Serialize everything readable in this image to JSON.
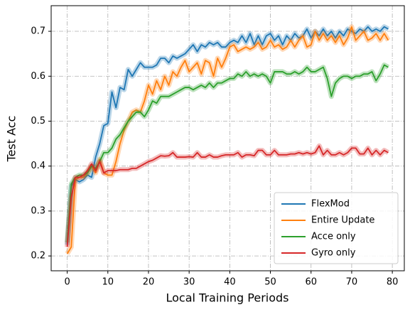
{
  "chart_data": {
    "type": "line",
    "xlabel": "Local Training Periods",
    "ylabel": "Test Acc",
    "x": [
      0,
      1,
      2,
      3,
      4,
      5,
      6,
      7,
      8,
      9,
      10,
      11,
      12,
      13,
      14,
      15,
      16,
      17,
      18,
      19,
      20,
      21,
      22,
      23,
      24,
      25,
      26,
      27,
      28,
      29,
      30,
      31,
      32,
      33,
      34,
      35,
      36,
      37,
      38,
      39,
      40,
      41,
      42,
      43,
      44,
      45,
      46,
      47,
      48,
      49,
      50,
      51,
      52,
      53,
      54,
      55,
      56,
      57,
      58,
      59,
      60,
      61,
      62,
      63,
      64,
      65,
      66,
      67,
      68,
      69,
      70,
      71,
      72,
      73,
      74,
      75,
      76,
      77,
      78,
      79
    ],
    "series": [
      {
        "name": "FlexMod",
        "color": "#1f77b4",
        "values": [
          0.225,
          0.355,
          0.37,
          0.365,
          0.37,
          0.38,
          0.375,
          0.42,
          0.45,
          0.49,
          0.495,
          0.565,
          0.53,
          0.575,
          0.57,
          0.615,
          0.6,
          0.615,
          0.63,
          0.62,
          0.62,
          0.62,
          0.625,
          0.64,
          0.64,
          0.63,
          0.645,
          0.64,
          0.645,
          0.65,
          0.66,
          0.67,
          0.655,
          0.67,
          0.665,
          0.675,
          0.67,
          0.675,
          0.665,
          0.665,
          0.675,
          0.68,
          0.675,
          0.69,
          0.675,
          0.695,
          0.67,
          0.69,
          0.67,
          0.69,
          0.695,
          0.68,
          0.69,
          0.67,
          0.69,
          0.68,
          0.695,
          0.685,
          0.69,
          0.705,
          0.685,
          0.7,
          0.69,
          0.705,
          0.69,
          0.7,
          0.685,
          0.7,
          0.69,
          0.705,
          0.7,
          0.695,
          0.705,
          0.7,
          0.71,
          0.7,
          0.705,
          0.7,
          0.71,
          0.705
        ]
      },
      {
        "name": "Entire Update",
        "color": "#ff7f0e",
        "values": [
          0.205,
          0.22,
          0.37,
          0.375,
          0.375,
          0.385,
          0.4,
          0.385,
          0.415,
          0.385,
          0.38,
          0.38,
          0.41,
          0.45,
          0.48,
          0.5,
          0.52,
          0.525,
          0.52,
          0.545,
          0.58,
          0.56,
          0.59,
          0.57,
          0.6,
          0.58,
          0.61,
          0.6,
          0.62,
          0.635,
          0.61,
          0.62,
          0.63,
          0.605,
          0.635,
          0.63,
          0.6,
          0.64,
          0.62,
          0.64,
          0.665,
          0.67,
          0.655,
          0.66,
          0.665,
          0.66,
          0.665,
          0.675,
          0.66,
          0.665,
          0.68,
          0.665,
          0.67,
          0.66,
          0.665,
          0.68,
          0.665,
          0.68,
          0.69,
          0.665,
          0.67,
          0.7,
          0.68,
          0.695,
          0.68,
          0.69,
          0.675,
          0.69,
          0.67,
          0.685,
          0.71,
          0.68,
          0.69,
          0.7,
          0.68,
          0.685,
          0.695,
          0.68,
          0.695,
          0.68
        ]
      },
      {
        "name": "Acce only",
        "color": "#2ca02c",
        "values": [
          0.23,
          0.36,
          0.375,
          0.38,
          0.38,
          0.385,
          0.4,
          0.395,
          0.41,
          0.43,
          0.43,
          0.44,
          0.46,
          0.47,
          0.485,
          0.5,
          0.51,
          0.52,
          0.52,
          0.51,
          0.525,
          0.545,
          0.54,
          0.555,
          0.555,
          0.555,
          0.56,
          0.565,
          0.57,
          0.575,
          0.575,
          0.57,
          0.575,
          0.58,
          0.575,
          0.585,
          0.575,
          0.585,
          0.585,
          0.59,
          0.595,
          0.595,
          0.605,
          0.6,
          0.61,
          0.6,
          0.605,
          0.6,
          0.605,
          0.6,
          0.585,
          0.61,
          0.61,
          0.61,
          0.605,
          0.605,
          0.61,
          0.605,
          0.61,
          0.62,
          0.61,
          0.61,
          0.615,
          0.62,
          0.595,
          0.555,
          0.585,
          0.595,
          0.6,
          0.6,
          0.595,
          0.6,
          0.6,
          0.605,
          0.605,
          0.61,
          0.59,
          0.605,
          0.625,
          0.62
        ]
      },
      {
        "name": "Gyro only",
        "color": "#d62728",
        "values": [
          0.22,
          0.33,
          0.375,
          0.375,
          0.38,
          0.39,
          0.405,
          0.39,
          0.41,
          0.385,
          0.39,
          0.39,
          0.39,
          0.392,
          0.392,
          0.392,
          0.395,
          0.395,
          0.4,
          0.405,
          0.41,
          0.413,
          0.418,
          0.423,
          0.422,
          0.423,
          0.43,
          0.42,
          0.42,
          0.42,
          0.421,
          0.42,
          0.43,
          0.42,
          0.42,
          0.425,
          0.42,
          0.42,
          0.423,
          0.425,
          0.425,
          0.425,
          0.43,
          0.42,
          0.425,
          0.425,
          0.423,
          0.435,
          0.435,
          0.425,
          0.425,
          0.435,
          0.425,
          0.425,
          0.425,
          0.427,
          0.427,
          0.43,
          0.427,
          0.43,
          0.427,
          0.43,
          0.445,
          0.425,
          0.435,
          0.425,
          0.425,
          0.43,
          0.425,
          0.43,
          0.44,
          0.44,
          0.427,
          0.427,
          0.44,
          0.425,
          0.435,
          0.425,
          0.435,
          0.43
        ]
      }
    ],
    "xlim": [
      -3.95,
      82.95
    ],
    "xticks": [
      0,
      10,
      20,
      30,
      40,
      50,
      60,
      70,
      80
    ],
    "ylim": [
      0.167,
      0.757
    ],
    "yticks": [
      0.2,
      0.3,
      0.4,
      0.5,
      0.6,
      0.7
    ],
    "grid": true,
    "legend": "lower right"
  }
}
